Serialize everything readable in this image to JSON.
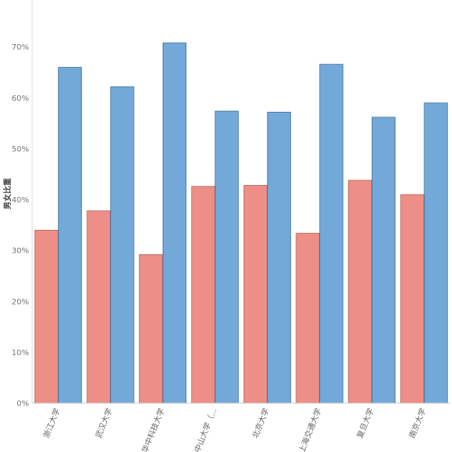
{
  "chart_data": {
    "type": "bar",
    "title": "",
    "xlabel": "",
    "ylabel": "男女比重",
    "ylim": [
      0,
      78
    ],
    "yticks": [
      0,
      10,
      20,
      30,
      40,
      50,
      60,
      70
    ],
    "ytick_labels": [
      "0%",
      "10%",
      "20%",
      "30%",
      "40%",
      "50%",
      "60%",
      "70%"
    ],
    "grid": false,
    "categories": [
      "浙江大学",
      "武汉大学",
      "华中科技大学",
      "中山大学（...",
      "北京大学",
      "上海交通大学",
      "复旦大学",
      "南京大学"
    ],
    "series": [
      {
        "values": [
          34.0,
          37.8,
          29.2,
          42.6,
          42.8,
          33.4,
          43.8,
          41.0
        ]
      },
      {
        "values": [
          66.0,
          62.2,
          70.8,
          57.4,
          57.2,
          66.6,
          56.2,
          59.0
        ]
      }
    ],
    "colors": [
      "#ee8f87",
      "#73a9d8"
    ],
    "edge_colors": [
      "#b5625d",
      "#3f6f9c"
    ]
  }
}
